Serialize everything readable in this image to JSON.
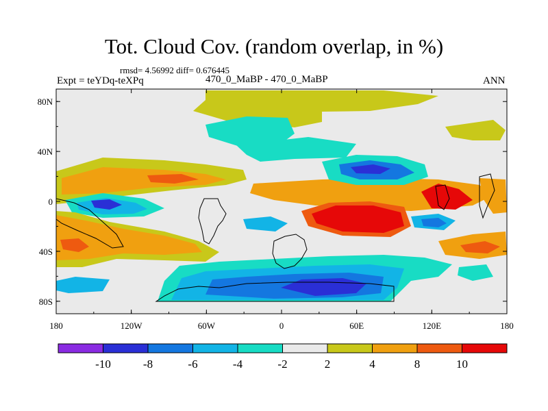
{
  "header": {
    "title": "Tot. Cloud Cov. (random overlap, in %)",
    "stats": "rmsd= 4.56992 diff= 0.676445",
    "experiment": "Expt = teYDq-teXPq",
    "case": "470_0_MaBP - 470_0_MaBP",
    "season": "ANN"
  },
  "axes": {
    "x_ticks": [
      "180",
      "120W",
      "60W",
      "0",
      "60E",
      "120E",
      "180"
    ],
    "y_ticks": [
      "80N",
      "40N",
      "0",
      "40S",
      "80S"
    ]
  },
  "colorbar": {
    "labels": [
      "-10",
      "-8",
      "-6",
      "-4",
      "-2",
      "2",
      "4",
      "8",
      "10"
    ],
    "colors": [
      "#8a2be2",
      "#2a2fd6",
      "#1477e0",
      "#12b4e6",
      "#18dcc4",
      "#eaeaea",
      "#c8c81a",
      "#f0a010",
      "#ee5a10",
      "#e60808"
    ]
  },
  "palette": {
    "background": "#eaeaea",
    "d2": "#18dcc4",
    "d4": "#12b4e6",
    "d6": "#1477e0",
    "d8": "#2a2fd6",
    "d10": "#8a2be2",
    "p2": "#c8c81a",
    "p4": "#f0a010",
    "p8": "#ee5a10",
    "p10": "#e60808"
  },
  "chart_data": {
    "type": "heatmap",
    "title": "Tot. Cloud Cov. (random overlap, in %)",
    "xlim": [
      -180,
      180
    ],
    "ylim": [
      -90,
      90
    ],
    "x_ticks": [
      -180,
      -120,
      -60,
      0,
      60,
      120,
      180
    ],
    "y_ticks": [
      80,
      40,
      0,
      -40,
      -80
    ],
    "contour_levels": [
      -10,
      -8,
      -6,
      -4,
      -2,
      2,
      4,
      8,
      10
    ],
    "features": [
      {
        "label": "positive anomaly 8 to 10",
        "lon": 45,
        "lat": -15,
        "value": 10
      },
      {
        "label": "positive anomaly",
        "lon": -160,
        "lat": -35,
        "value": 8
      },
      {
        "label": "positive anomaly",
        "lon": 150,
        "lat": -30,
        "value": 8
      },
      {
        "label": "positive anomaly",
        "lon": 140,
        "lat": 0,
        "value": 10
      },
      {
        "label": "positive anomaly",
        "lon": -40,
        "lat": 20,
        "value": 8
      },
      {
        "label": "negative anomaly",
        "lon": 50,
        "lat": -70,
        "value": -8
      },
      {
        "label": "negative anomaly",
        "lon": -140,
        "lat": -3,
        "value": -8
      },
      {
        "label": "negative anomaly",
        "lon": 65,
        "lat": 27,
        "value": -8
      },
      {
        "label": "negative anomaly",
        "lon": 0,
        "lat": 55,
        "value": -4
      },
      {
        "label": "positive anomaly",
        "lon": 20,
        "lat": 82,
        "value": 4
      }
    ]
  }
}
